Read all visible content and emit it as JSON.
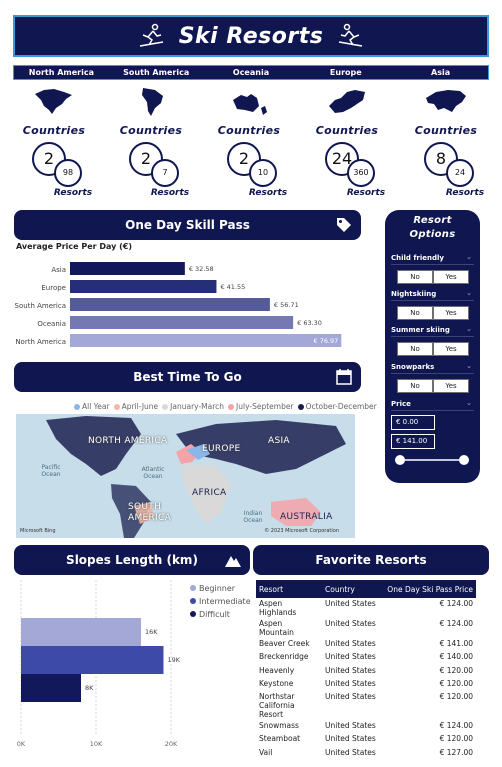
{
  "header": {
    "title": "Ski Resorts",
    "left_icon": "skier-icon",
    "right_icon": "skier-icon"
  },
  "regions": [
    {
      "name": "North America",
      "countries": "2",
      "resorts": "98"
    },
    {
      "name": "South America",
      "countries": "2",
      "resorts": "7"
    },
    {
      "name": "Oceania",
      "countries": "2",
      "resorts": "10"
    },
    {
      "name": "Europe",
      "countries": "24",
      "resorts": "360"
    },
    {
      "name": "Asia",
      "countries": "8",
      "resorts": "24"
    }
  ],
  "region_labels": {
    "countries": "Countries",
    "resorts": "Resorts"
  },
  "pass_section": {
    "title": "One Day Skill Pass",
    "icon": "price-tag-icon",
    "subtitle": "Average Price Per Day (€)"
  },
  "chart_data": {
    "type": "bar",
    "orientation": "horizontal",
    "title": "Average Price Per Day (€)",
    "categories": [
      "Asia",
      "Europe",
      "South America",
      "Oceania",
      "North America"
    ],
    "values": [
      32.58,
      41.55,
      56.71,
      63.3,
      76.97
    ],
    "labels": [
      "€ 32.58",
      "€ 41.55",
      "€ 56.71",
      "€ 63.30",
      "€ 76.97"
    ],
    "xlim": [
      0,
      80
    ],
    "grid": false,
    "colors": [
      "#12195a",
      "#262e78",
      "#545a9a",
      "#7479b4",
      "#a3a8d6"
    ]
  },
  "best_time": {
    "title": "Best Time To Go",
    "icon": "calendar-icon",
    "legend": [
      {
        "label": "All Year",
        "color": "#8ab7e6"
      },
      {
        "label": "April-June",
        "color": "#f2b8a3"
      },
      {
        "label": "January-March",
        "color": "#d9d9d9"
      },
      {
        "label": "July-September",
        "color": "#f4a3a8"
      },
      {
        "label": "October-December",
        "color": "#1a1f4a"
      }
    ],
    "map_labels": {
      "north_america": "NORTH AMERICA",
      "europe": "EUROPE",
      "asia": "ASIA",
      "africa": "AFRICA",
      "south_america": "SOUTH AMERICA",
      "australia": "AUSTRALIA",
      "pacific": "Pacific Ocean",
      "atlantic": "Atlantic Ocean",
      "indian": "Indian Ocean"
    },
    "copyright": "© 2023 Microsoft Corporation",
    "bing": "Microsoft Bing"
  },
  "resort_options": {
    "title_line1": "Resort",
    "title_line2": "Options",
    "filters": [
      {
        "label": "Child friendly",
        "no": "No",
        "yes": "Yes"
      },
      {
        "label": "Nightskiing",
        "no": "No",
        "yes": "Yes"
      },
      {
        "label": "Summer skiing",
        "no": "No",
        "yes": "Yes"
      },
      {
        "label": "Snowparks",
        "no": "No",
        "yes": "Yes"
      }
    ],
    "price_label": "Price",
    "price_min": "€ 0.00",
    "price_max": "€ 141.00"
  },
  "slopes": {
    "title": "Slopes Length (km)",
    "icon": "mountain-icon",
    "chart_data": {
      "type": "bar",
      "orientation": "horizontal",
      "series": [
        {
          "name": "Beginner",
          "value": 16,
          "label": "16K",
          "color": "#a3a8d6"
        },
        {
          "name": "Intermediate",
          "value": 19,
          "label": "19K",
          "color": "#3e4aa8"
        },
        {
          "name": "Difficult",
          "value": 8,
          "label": "8K",
          "color": "#12195a"
        }
      ],
      "xticks": [
        "0K",
        "10K",
        "20K"
      ],
      "xlim": [
        0,
        20
      ]
    }
  },
  "favorites": {
    "title": "Favorite Resorts",
    "columns": [
      "Resort",
      "Country",
      "One Day Ski Pass Price"
    ],
    "rows": [
      [
        "Aspen Highlands",
        "United States",
        "€ 124.00"
      ],
      [
        "Aspen Mountain",
        "United States",
        "€ 124.00"
      ],
      [
        "Beaver Creek",
        "United States",
        "€ 141.00"
      ],
      [
        "Breckenridge",
        "United States",
        "€ 140.00"
      ],
      [
        "Heavenly",
        "United States",
        "€ 120.00"
      ],
      [
        "Keystone",
        "United States",
        "€ 120.00"
      ],
      [
        "Northstar California Resort",
        "United States",
        "€ 120.00"
      ],
      [
        "Snowmass",
        "United States",
        "€ 124.00"
      ],
      [
        "Steamboat",
        "United States",
        "€ 120.00"
      ],
      [
        "Vail",
        "United States",
        "€ 127.00"
      ]
    ]
  }
}
